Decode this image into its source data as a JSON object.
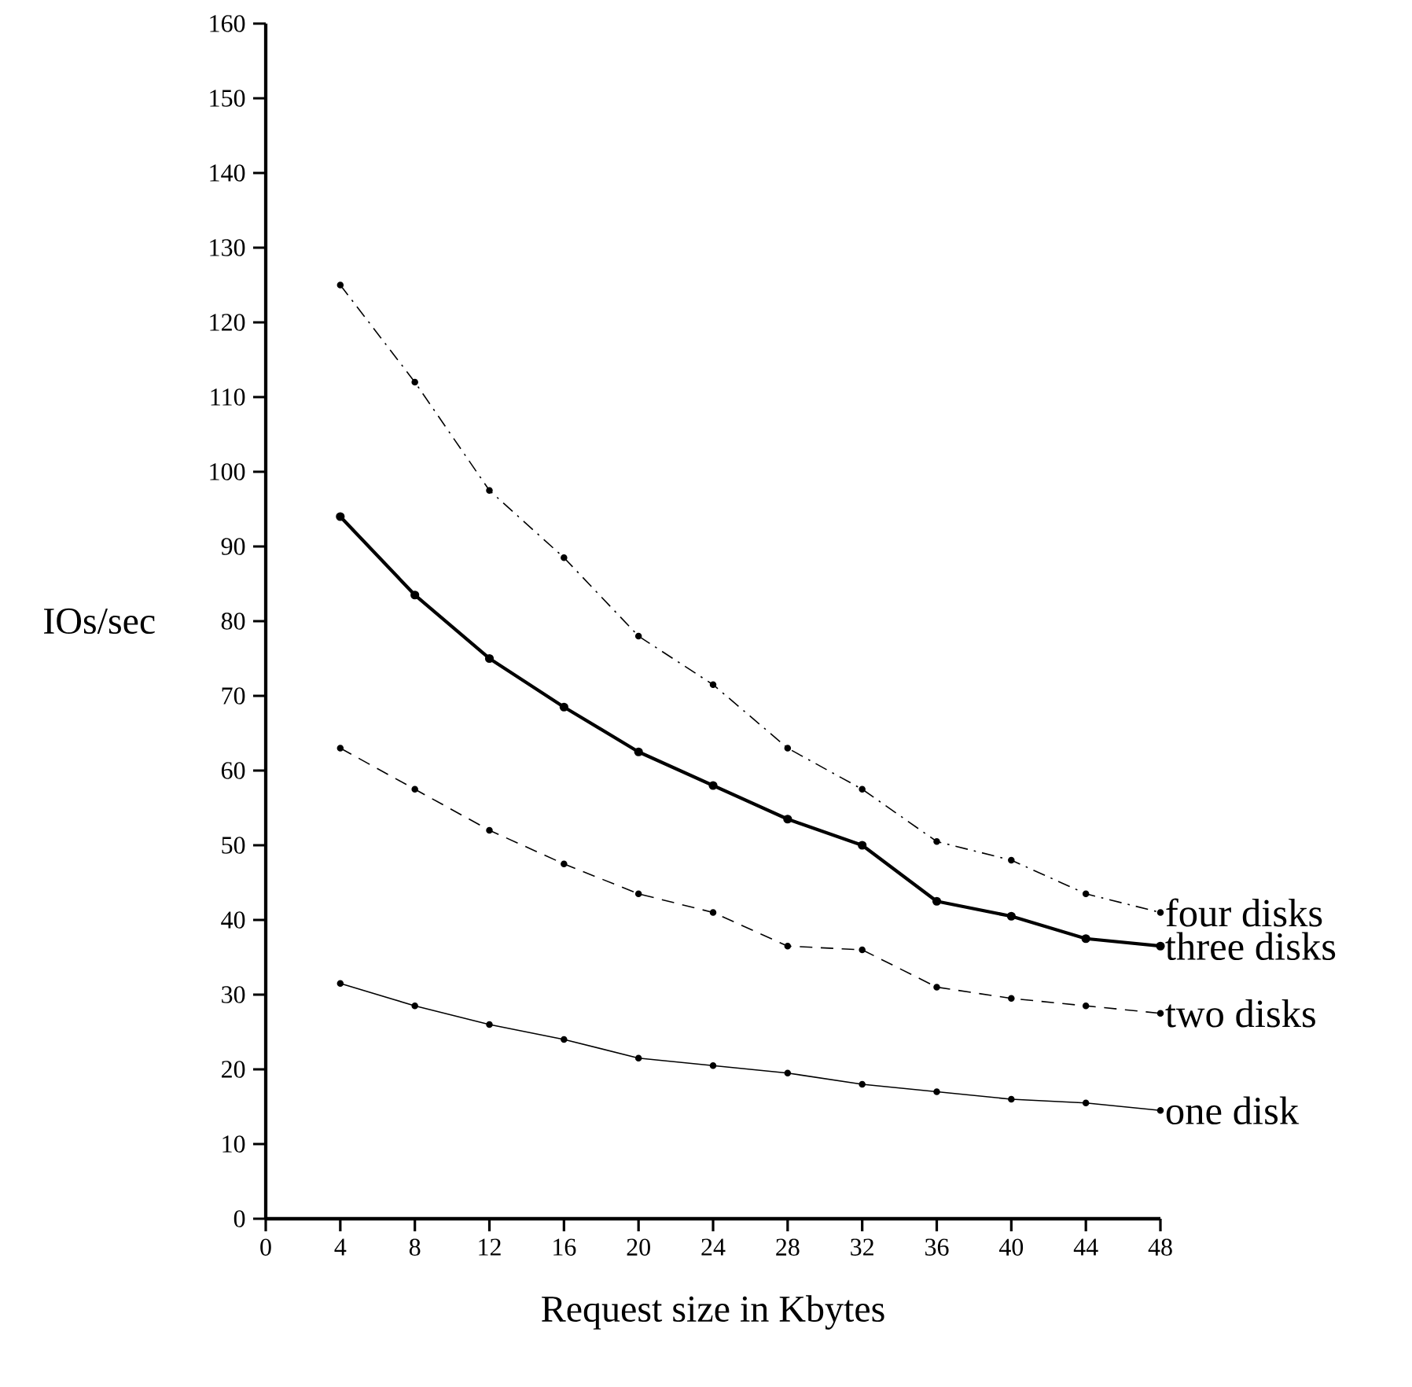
{
  "chart_data": {
    "type": "line",
    "xlabel": "Request size in Kbytes",
    "ylabel": "IOs/sec",
    "x": [
      4,
      8,
      12,
      16,
      20,
      24,
      28,
      32,
      36,
      40,
      44,
      48
    ],
    "series": [
      {
        "name": "four disks",
        "color": "#000000",
        "line_style": "dashdot",
        "values": [
          125,
          112,
          97.5,
          88.5,
          78,
          71.5,
          63,
          57.5,
          50.5,
          48,
          43.5,
          41
        ]
      },
      {
        "name": "three disks",
        "color": "#000000",
        "line_style": "solid",
        "values": [
          94,
          83.5,
          75,
          68.5,
          62.5,
          58,
          53.5,
          50,
          42.5,
          40.5,
          37.5,
          36.5
        ]
      },
      {
        "name": "two disks",
        "color": "#000000",
        "line_style": "dashed",
        "values": [
          63,
          57.5,
          52,
          47.5,
          43.5,
          41,
          36.5,
          36,
          31,
          29.5,
          28.5,
          27.5
        ]
      },
      {
        "name": "one disk",
        "color": "#000000",
        "line_style": "solid",
        "values": [
          31.5,
          28.5,
          26,
          24,
          21.5,
          20.5,
          19.5,
          18,
          17,
          16,
          15.5,
          14.5
        ]
      }
    ],
    "xlim": [
      0,
      48
    ],
    "xticks": [
      0,
      4,
      8,
      12,
      16,
      20,
      24,
      28,
      32,
      36,
      40,
      44,
      48
    ],
    "ylim": [
      0,
      160
    ],
    "yticks": [
      0,
      10,
      20,
      30,
      40,
      50,
      60,
      70,
      80,
      90,
      100,
      110,
      120,
      130,
      140,
      150,
      160
    ],
    "grid": false,
    "marker": "circle"
  }
}
